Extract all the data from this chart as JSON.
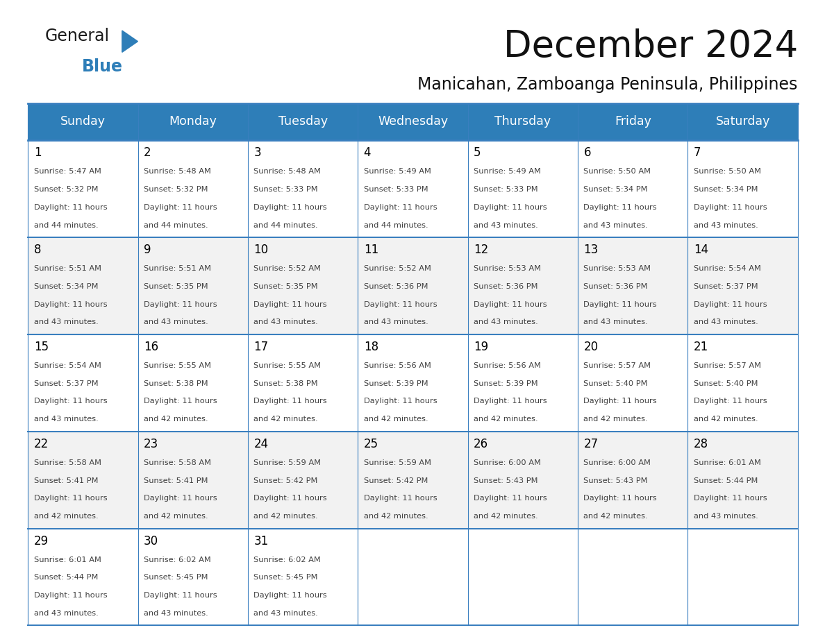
{
  "title": "December 2024",
  "subtitle": "Manicahan, Zamboanga Peninsula, Philippines",
  "header_bg_color": "#2E7EB8",
  "header_text_color": "#FFFFFF",
  "weekdays": [
    "Sunday",
    "Monday",
    "Tuesday",
    "Wednesday",
    "Thursday",
    "Friday",
    "Saturday"
  ],
  "bg_color": "#FFFFFF",
  "row_bg_colors": [
    "#FFFFFF",
    "#F2F2F2"
  ],
  "grid_line_color": "#3A7FBF",
  "day_number_color": "#000000",
  "cell_text_color": "#404040",
  "title_color": "#111111",
  "subtitle_color": "#111111",
  "logo_general_color": "#1a1a1a",
  "logo_blue_color": "#2E7EB8",
  "logo_triangle_color": "#2E7EB8",
  "days": [
    {
      "day": 1,
      "col": 0,
      "row": 0,
      "sunrise": "5:47 AM",
      "sunset": "5:32 PM",
      "dl_suffix": "44 minutes."
    },
    {
      "day": 2,
      "col": 1,
      "row": 0,
      "sunrise": "5:48 AM",
      "sunset": "5:32 PM",
      "dl_suffix": "44 minutes."
    },
    {
      "day": 3,
      "col": 2,
      "row": 0,
      "sunrise": "5:48 AM",
      "sunset": "5:33 PM",
      "dl_suffix": "44 minutes."
    },
    {
      "day": 4,
      "col": 3,
      "row": 0,
      "sunrise": "5:49 AM",
      "sunset": "5:33 PM",
      "dl_suffix": "44 minutes."
    },
    {
      "day": 5,
      "col": 4,
      "row": 0,
      "sunrise": "5:49 AM",
      "sunset": "5:33 PM",
      "dl_suffix": "43 minutes."
    },
    {
      "day": 6,
      "col": 5,
      "row": 0,
      "sunrise": "5:50 AM",
      "sunset": "5:34 PM",
      "dl_suffix": "43 minutes."
    },
    {
      "day": 7,
      "col": 6,
      "row": 0,
      "sunrise": "5:50 AM",
      "sunset": "5:34 PM",
      "dl_suffix": "43 minutes."
    },
    {
      "day": 8,
      "col": 0,
      "row": 1,
      "sunrise": "5:51 AM",
      "sunset": "5:34 PM",
      "dl_suffix": "43 minutes."
    },
    {
      "day": 9,
      "col": 1,
      "row": 1,
      "sunrise": "5:51 AM",
      "sunset": "5:35 PM",
      "dl_suffix": "43 minutes."
    },
    {
      "day": 10,
      "col": 2,
      "row": 1,
      "sunrise": "5:52 AM",
      "sunset": "5:35 PM",
      "dl_suffix": "43 minutes."
    },
    {
      "day": 11,
      "col": 3,
      "row": 1,
      "sunrise": "5:52 AM",
      "sunset": "5:36 PM",
      "dl_suffix": "43 minutes."
    },
    {
      "day": 12,
      "col": 4,
      "row": 1,
      "sunrise": "5:53 AM",
      "sunset": "5:36 PM",
      "dl_suffix": "43 minutes."
    },
    {
      "day": 13,
      "col": 5,
      "row": 1,
      "sunrise": "5:53 AM",
      "sunset": "5:36 PM",
      "dl_suffix": "43 minutes."
    },
    {
      "day": 14,
      "col": 6,
      "row": 1,
      "sunrise": "5:54 AM",
      "sunset": "5:37 PM",
      "dl_suffix": "43 minutes."
    },
    {
      "day": 15,
      "col": 0,
      "row": 2,
      "sunrise": "5:54 AM",
      "sunset": "5:37 PM",
      "dl_suffix": "43 minutes."
    },
    {
      "day": 16,
      "col": 1,
      "row": 2,
      "sunrise": "5:55 AM",
      "sunset": "5:38 PM",
      "dl_suffix": "42 minutes."
    },
    {
      "day": 17,
      "col": 2,
      "row": 2,
      "sunrise": "5:55 AM",
      "sunset": "5:38 PM",
      "dl_suffix": "42 minutes."
    },
    {
      "day": 18,
      "col": 3,
      "row": 2,
      "sunrise": "5:56 AM",
      "sunset": "5:39 PM",
      "dl_suffix": "42 minutes."
    },
    {
      "day": 19,
      "col": 4,
      "row": 2,
      "sunrise": "5:56 AM",
      "sunset": "5:39 PM",
      "dl_suffix": "42 minutes."
    },
    {
      "day": 20,
      "col": 5,
      "row": 2,
      "sunrise": "5:57 AM",
      "sunset": "5:40 PM",
      "dl_suffix": "42 minutes."
    },
    {
      "day": 21,
      "col": 6,
      "row": 2,
      "sunrise": "5:57 AM",
      "sunset": "5:40 PM",
      "dl_suffix": "42 minutes."
    },
    {
      "day": 22,
      "col": 0,
      "row": 3,
      "sunrise": "5:58 AM",
      "sunset": "5:41 PM",
      "dl_suffix": "42 minutes."
    },
    {
      "day": 23,
      "col": 1,
      "row": 3,
      "sunrise": "5:58 AM",
      "sunset": "5:41 PM",
      "dl_suffix": "42 minutes."
    },
    {
      "day": 24,
      "col": 2,
      "row": 3,
      "sunrise": "5:59 AM",
      "sunset": "5:42 PM",
      "dl_suffix": "42 minutes."
    },
    {
      "day": 25,
      "col": 3,
      "row": 3,
      "sunrise": "5:59 AM",
      "sunset": "5:42 PM",
      "dl_suffix": "42 minutes."
    },
    {
      "day": 26,
      "col": 4,
      "row": 3,
      "sunrise": "6:00 AM",
      "sunset": "5:43 PM",
      "dl_suffix": "42 minutes."
    },
    {
      "day": 27,
      "col": 5,
      "row": 3,
      "sunrise": "6:00 AM",
      "sunset": "5:43 PM",
      "dl_suffix": "42 minutes."
    },
    {
      "day": 28,
      "col": 6,
      "row": 3,
      "sunrise": "6:01 AM",
      "sunset": "5:44 PM",
      "dl_suffix": "43 minutes."
    },
    {
      "day": 29,
      "col": 0,
      "row": 4,
      "sunrise": "6:01 AM",
      "sunset": "5:44 PM",
      "dl_suffix": "43 minutes."
    },
    {
      "day": 30,
      "col": 1,
      "row": 4,
      "sunrise": "6:02 AM",
      "sunset": "5:45 PM",
      "dl_suffix": "43 minutes."
    },
    {
      "day": 31,
      "col": 2,
      "row": 4,
      "sunrise": "6:02 AM",
      "sunset": "5:45 PM",
      "dl_suffix": "43 minutes."
    }
  ],
  "num_rows": 5,
  "num_cols": 7
}
